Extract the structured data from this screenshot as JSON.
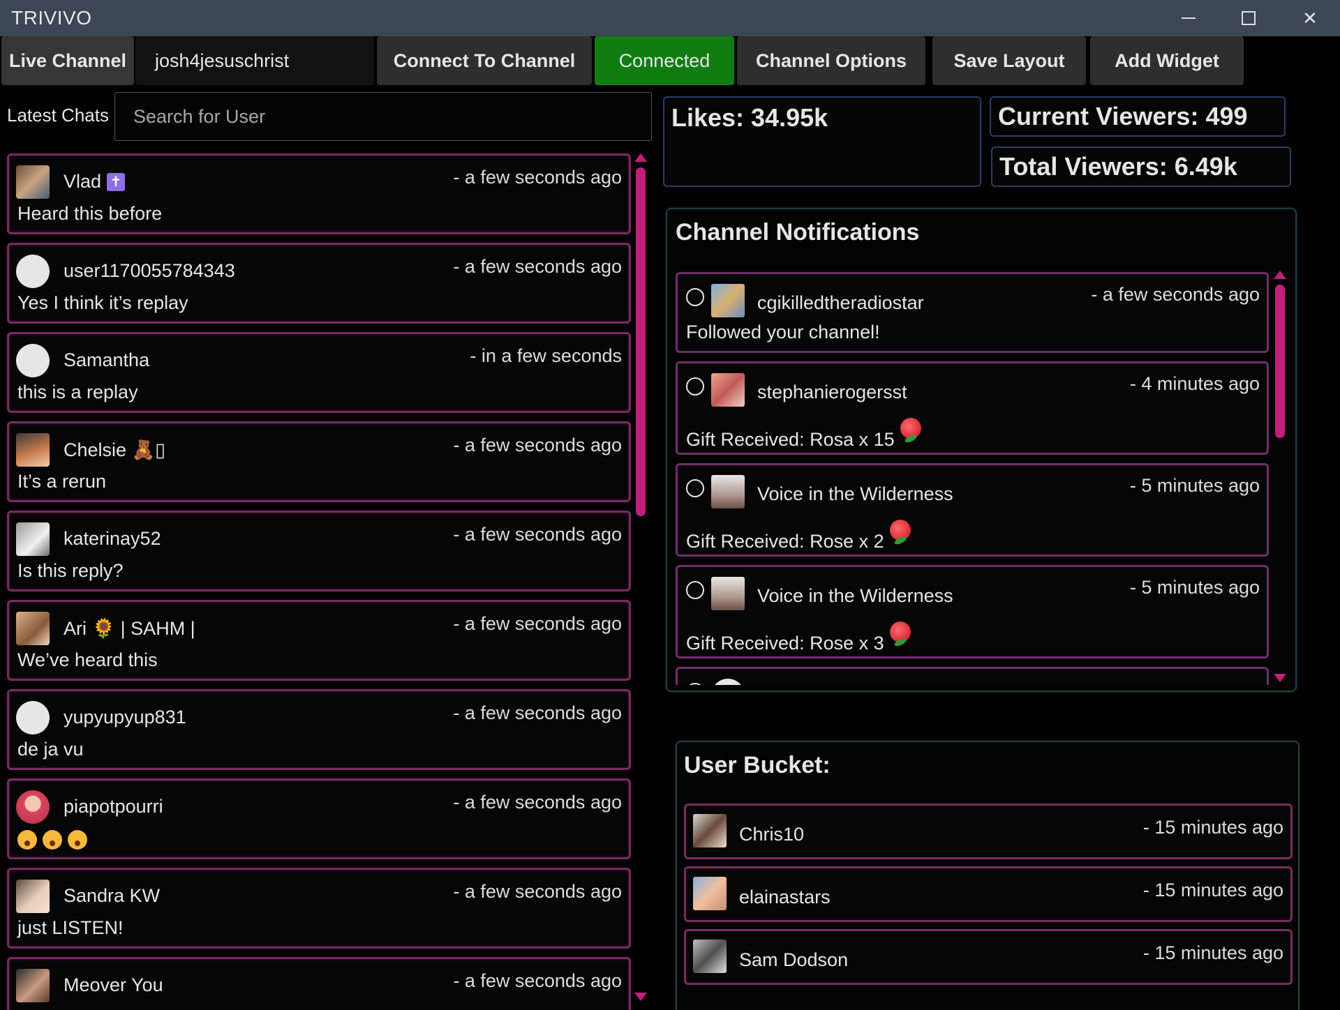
{
  "window": {
    "title": "TRIVIVO"
  },
  "toolbar": {
    "live_channel_label": "Live Channel",
    "channel_value": "josh4jesuschrist",
    "connect_label": "Connect To Channel",
    "status_label": "Connected",
    "status_color": "#0f7d12",
    "options_label": "Channel Options",
    "save_label": "Save Layout",
    "add_widget_label": "Add Widget"
  },
  "chats": {
    "label": "Latest Chats",
    "search_placeholder": "Search for User",
    "items": [
      {
        "user": "Vlad",
        "badge": "✝",
        "time": "- a few seconds ago",
        "msg": "Heard this before"
      },
      {
        "user": "user1170055784343",
        "time": "- a few seconds ago",
        "msg": "Yes I think it’s replay"
      },
      {
        "user": "Samantha",
        "time": "- in a few seconds",
        "msg": "this is a replay"
      },
      {
        "user": "Chelsie",
        "badge": "🧸▯",
        "time": "- a few seconds ago",
        "msg": "It’s a rerun"
      },
      {
        "user": "katerinay52",
        "time": "- a few seconds ago",
        "msg": "Is this reply?"
      },
      {
        "user": "Ari",
        "badge": "🌻",
        "suffix": "| SAHM |",
        "time": "- a few seconds ago",
        "msg": "We’ve heard this"
      },
      {
        "user": "yupyupyup831",
        "time": "- a few seconds ago",
        "msg": "de ja vu"
      },
      {
        "user": "piapotpourri",
        "time": "- a few seconds ago",
        "msg": ""
      },
      {
        "user": "Sandra KW",
        "time": "- a few seconds ago",
        "msg": "just LISTEN!"
      },
      {
        "user": "Meover You",
        "time": "- a few seconds ago",
        "msg": ""
      }
    ]
  },
  "stats": {
    "likes": "Likes: 34.95k",
    "current_viewers": "Current Viewers: 499",
    "total_viewers": "Total Viewers: 6.49k"
  },
  "notifications": {
    "title": "Channel Notifications",
    "items": [
      {
        "user": "cgikilledtheradiostar",
        "time": "- a few seconds ago",
        "msg": "Followed your channel!"
      },
      {
        "user": "stephanierogersst",
        "time": "- 4 minutes ago",
        "msg": "Gift Received: Rosa x 15"
      },
      {
        "user": "Voice in the Wilderness",
        "time": "- 5 minutes ago",
        "msg": "Gift Received: Rose x 2"
      },
      {
        "user": "Voice in the Wilderness",
        "time": "- 5 minutes ago",
        "msg": "Gift Received: Rose x 3"
      }
    ]
  },
  "bucket": {
    "title": "User Bucket:",
    "items": [
      {
        "user": "Chris10",
        "time": "- 15 minutes ago"
      },
      {
        "user": "elainastars",
        "time": "- 15 minutes ago"
      },
      {
        "user": "Sam Dodson",
        "time": "- 15 minutes ago"
      }
    ]
  }
}
